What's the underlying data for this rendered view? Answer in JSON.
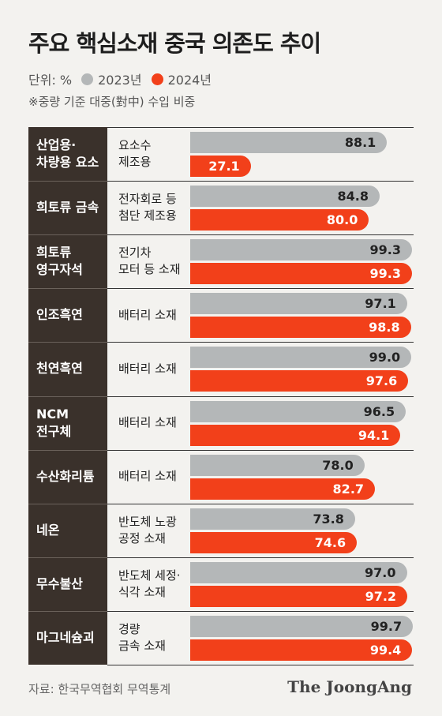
{
  "header": {
    "title": "주요 핵심소재 중국 의존도 추이",
    "unit_label": "단위: %",
    "legend": [
      {
        "name": "2023년",
        "color": "#b4b7b8"
      },
      {
        "name": "2024년",
        "color": "#f2401a"
      }
    ],
    "note": "※중량 기준 대중(對中) 수입 비중"
  },
  "footer": {
    "source": "자료: 한국무역협회 무역통계",
    "brand": "The JoongAng"
  },
  "chart_data": {
    "type": "bar",
    "orientation": "horizontal",
    "title": "주요 핵심소재 중국 의존도 추이",
    "unit": "%",
    "series_names": [
      "2023년",
      "2024년"
    ],
    "colors": {
      "2023년": "#b4b7b8",
      "2024년": "#f2401a"
    },
    "categories": [
      {
        "name": "산업용·\n차량용 요소",
        "sub": "요소수\n제조용",
        "v2023": 88.1,
        "v2024": 27.1
      },
      {
        "name": "희토류 금속",
        "sub": "전자회로 등\n첨단 제조용",
        "v2023": 84.8,
        "v2024": 80.0
      },
      {
        "name": "희토류\n영구자석",
        "sub": "전기차\n모터 등 소재",
        "v2023": 99.3,
        "v2024": 99.3
      },
      {
        "name": "인조흑연",
        "sub": "배터리 소재",
        "v2023": 97.1,
        "v2024": 98.8
      },
      {
        "name": "천연흑연",
        "sub": "배터리 소재",
        "v2023": 99.0,
        "v2024": 97.6
      },
      {
        "name": "NCM\n전구체",
        "sub": "배터리 소재",
        "v2023": 96.5,
        "v2024": 94.1
      },
      {
        "name": "수산화리튬",
        "sub": "배터리 소재",
        "v2023": 78.0,
        "v2024": 82.7
      },
      {
        "name": "네온",
        "sub": "반도체 노광\n공정 소재",
        "v2023": 73.8,
        "v2024": 74.6
      },
      {
        "name": "무수불산",
        "sub": "반도체 세정·\n식각 소재",
        "v2023": 97.0,
        "v2024": 97.2
      },
      {
        "name": "마그네슘괴",
        "sub": "경량\n금속 소재",
        "v2023": 99.7,
        "v2024": 99.4
      }
    ],
    "value_labels_2023": [
      "88.1",
      "84.8",
      "99.3",
      "97.1",
      "99.0",
      "96.5",
      "78.0",
      "73.8",
      "97.0",
      "99.7"
    ],
    "value_labels_2024": [
      "27.1",
      "80.0",
      "99.3",
      "98.8",
      "97.6",
      "94.1",
      "82.7",
      "74.6",
      "97.2",
      "99.4"
    ],
    "xlim": [
      0,
      100
    ]
  }
}
